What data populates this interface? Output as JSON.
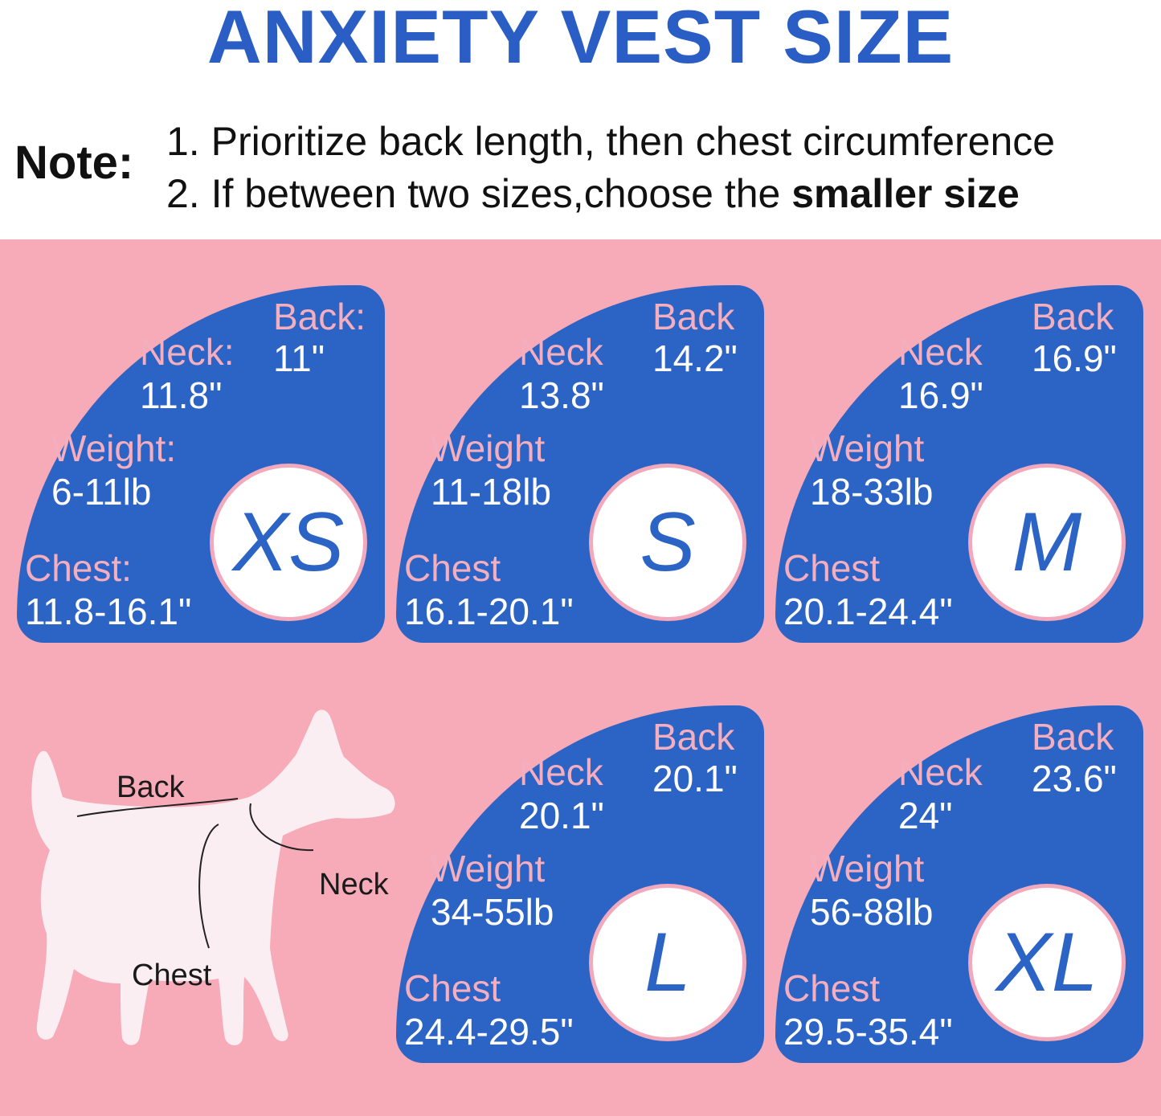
{
  "title": "ANXIETY VEST SIZE",
  "note": {
    "label": "Note:",
    "line1": "1. Prioritize back length, then chest circumference",
    "line2_prefix": "2. If between two sizes,choose the ",
    "line2_bold": "smaller size"
  },
  "sizes": [
    {
      "size": "XS",
      "back_label": "Back:",
      "back": "11\"",
      "neck_label": "Neck:",
      "neck": "11.8\"",
      "weight_label": "Weight:",
      "weight": "6-11lb",
      "chest_label": "Chest:",
      "chest": "11.8-16.1\""
    },
    {
      "size": "S",
      "back_label": "Back",
      "back": "14.2\"",
      "neck_label": "Neck",
      "neck": "13.8\"",
      "weight_label": "Weight",
      "weight": "11-18lb",
      "chest_label": "Chest",
      "chest": "16.1-20.1\""
    },
    {
      "size": "M",
      "back_label": "Back",
      "back": "16.9\"",
      "neck_label": "Neck",
      "neck": "16.9\"",
      "weight_label": "Weight",
      "weight": "18-33lb",
      "chest_label": "Chest",
      "chest": "20.1-24.4\""
    },
    {
      "size": "L",
      "back_label": "Back",
      "back": "20.1\"",
      "neck_label": "Neck",
      "neck": "20.1\"",
      "weight_label": "Weight",
      "weight": "34-55lb",
      "chest_label": "Chest",
      "chest": "24.4-29.5\""
    },
    {
      "size": "XL",
      "back_label": "Back",
      "back": "23.6\"",
      "neck_label": "Neck",
      "neck": "24\"",
      "weight_label": "Weight",
      "weight": "56-88lb",
      "chest_label": "Chest",
      "chest": "29.5-35.4\""
    }
  ],
  "dog_labels": {
    "back": "Back",
    "neck": "Neck",
    "chest": "Chest"
  },
  "colors": {
    "title": "#2a5ec4",
    "card": "#2c64c6",
    "pink_background": "#f7aab7",
    "pink_text": "#f5aebe"
  }
}
